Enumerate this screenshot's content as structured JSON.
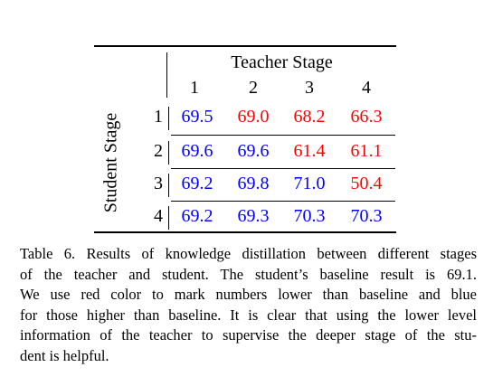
{
  "table": {
    "teacher_title": "Teacher Stage",
    "student_title": "Student Stage",
    "teacher_stages": [
      "1",
      "2",
      "3",
      "4"
    ],
    "rows": [
      {
        "stage": "1",
        "values": [
          "69.5",
          "69.0",
          "68.2",
          "66.3"
        ],
        "colors": [
          "blue",
          "red",
          "red",
          "red"
        ]
      },
      {
        "stage": "2",
        "values": [
          "69.6",
          "69.6",
          "61.4",
          "61.1"
        ],
        "colors": [
          "blue",
          "blue",
          "red",
          "red"
        ]
      },
      {
        "stage": "3",
        "values": [
          "69.2",
          "69.8",
          "71.0",
          "50.4"
        ],
        "colors": [
          "blue",
          "blue",
          "blue",
          "red"
        ]
      },
      {
        "stage": "4",
        "values": [
          "69.2",
          "69.3",
          "70.3",
          "70.3"
        ],
        "colors": [
          "blue",
          "blue",
          "blue",
          "blue"
        ]
      }
    ],
    "color_key": {
      "blue": "#0000ff",
      "red": "#ff0000"
    }
  },
  "caption": {
    "lines": [
      "Table 6. Results of knowledge distillation between different stages",
      "of the teacher and student.  The student’s baseline result is 69.1.",
      "We use red color to mark numbers lower than baseline and blue",
      "for those higher than baseline. It is clear that using the lower level",
      "information of the teacher to supervise the deeper stage of the stu-",
      "dent is helpful."
    ]
  }
}
